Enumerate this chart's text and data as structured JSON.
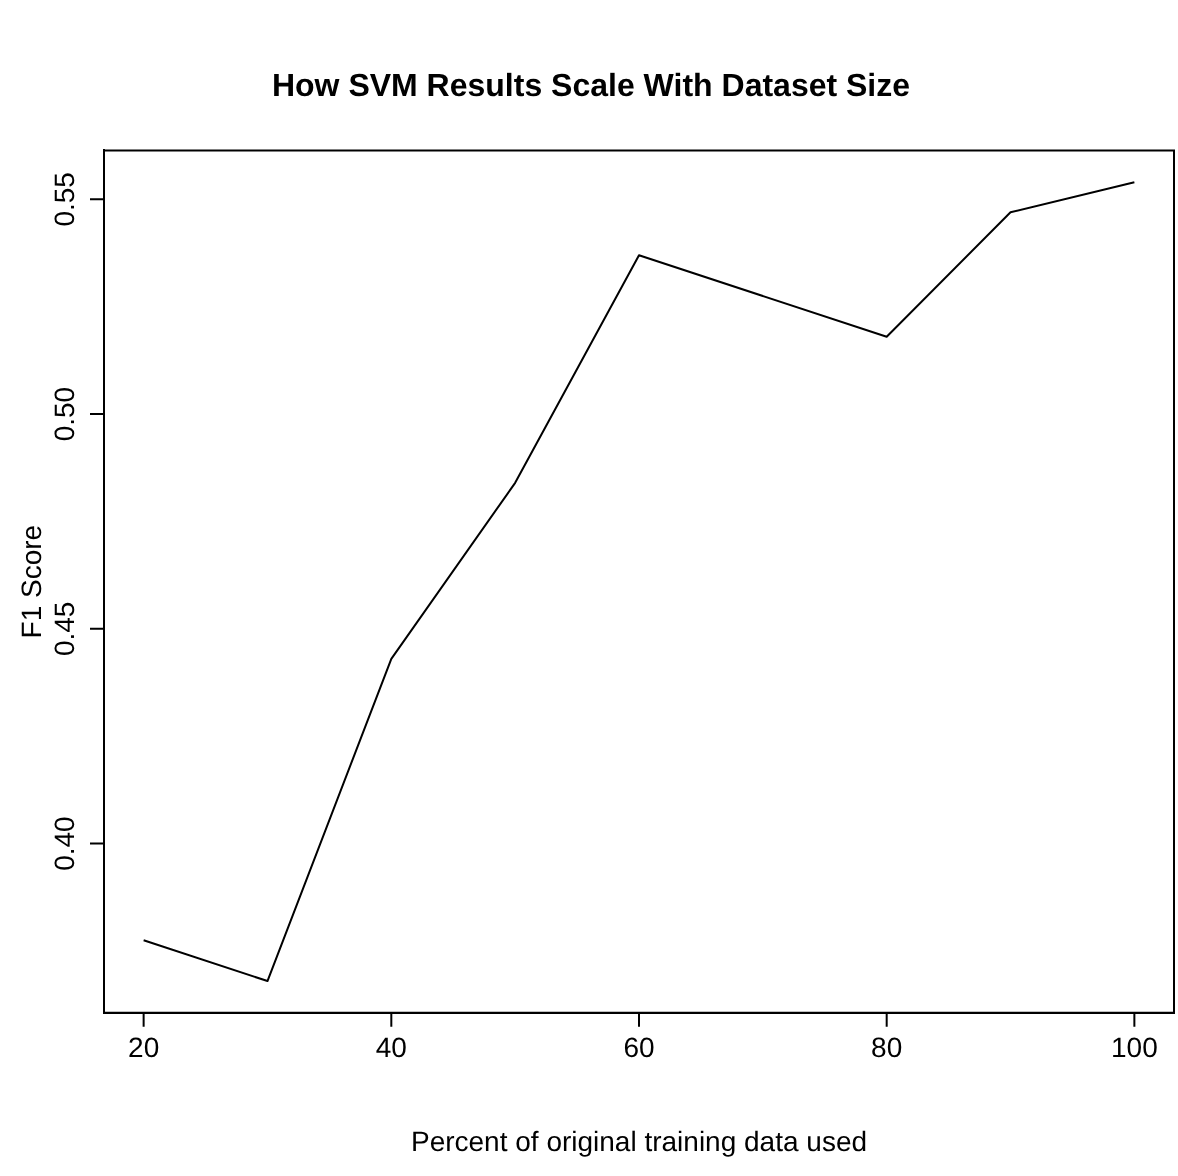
{
  "chart_data": {
    "type": "line",
    "title": "How SVM Results Scale With Dataset Size",
    "xlabel": "Percent of original training data used",
    "ylabel": "F1 Score",
    "x": [
      20,
      30,
      40,
      50,
      60,
      80,
      90,
      100
    ],
    "series": [
      {
        "color": "#000000",
        "values": [
          0.3775,
          0.368,
          0.443,
          0.484,
          0.537,
          0.518,
          0.547,
          0.554
        ]
      }
    ],
    "xlim": [
      16.8,
      103.2
    ],
    "xticks": [
      20,
      40,
      60,
      80,
      100
    ],
    "ylim": [
      0.3606,
      0.5614
    ],
    "yticks": [
      {
        "value": 0.4,
        "label": "0.40"
      },
      {
        "value": 0.45,
        "label": "0.45"
      },
      {
        "value": 0.5,
        "label": "0.50"
      },
      {
        "value": 0.55,
        "label": "0.55"
      }
    ],
    "grid": false,
    "legend": false,
    "marker": "none",
    "line_style": "solid"
  }
}
